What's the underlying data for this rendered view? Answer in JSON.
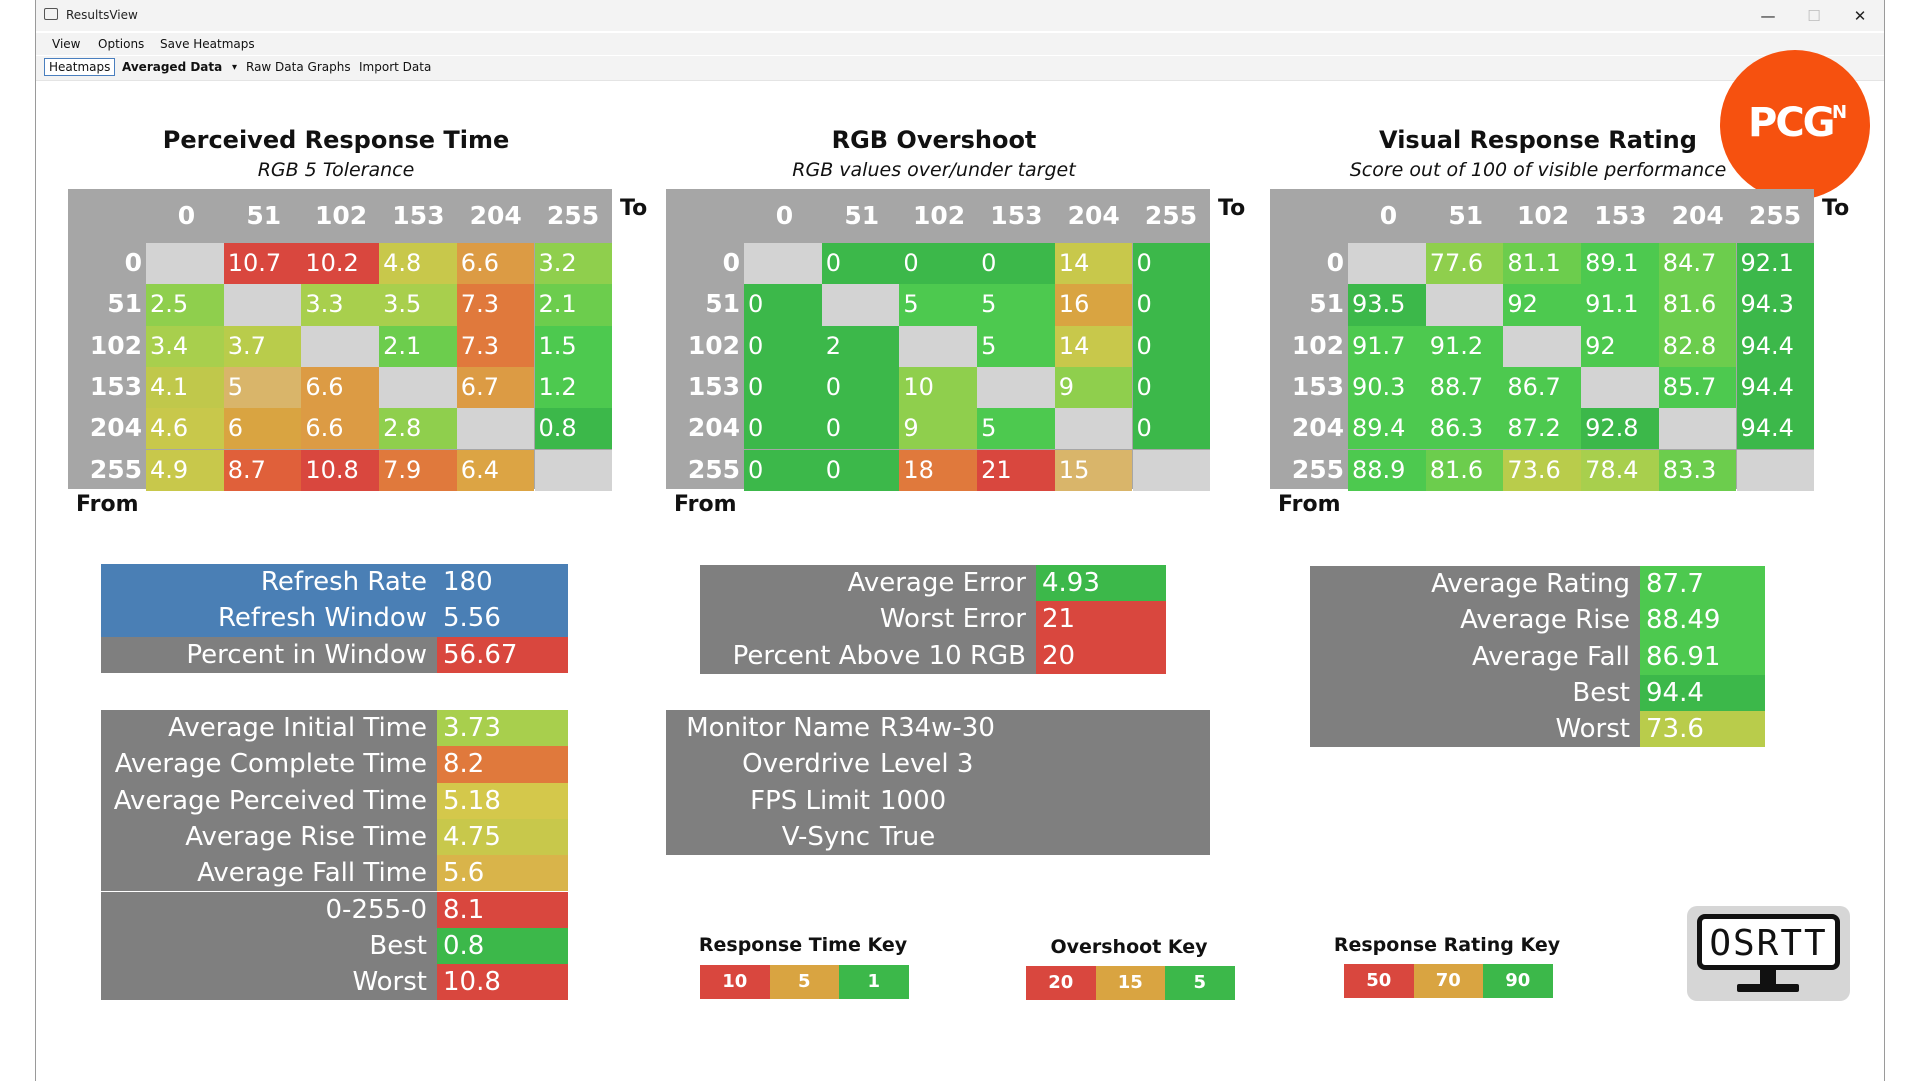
{
  "window": {
    "title": "ResultsView",
    "controls": {
      "minimize": "—",
      "maximize": "☐",
      "close": "✕"
    }
  },
  "menu": [
    "View",
    "Options",
    "Save Heatmaps"
  ],
  "toolbar": {
    "tabs": [
      "Heatmaps"
    ],
    "dropdown_value": "Averaged Data",
    "dropdown_arrow": "▾",
    "links": [
      "Raw Data Graphs",
      "Import Data"
    ]
  },
  "logo_text": "PCG",
  "logo_sup": "N",
  "colors": {
    "header_gray": "#a6a6a6",
    "diag_gray": "#d3d3d3",
    "stat_gray": "#7f7f7f",
    "blue": "#4a7fb5",
    "red": "#d9473e",
    "orange_red": "#e05a3a",
    "orange": "#e0793c",
    "amber": "#d9a441",
    "yellow": "#d4b84d",
    "yellow_green": "#b9cc4b",
    "light_green": "#8fcf4d",
    "green": "#4dc94f",
    "dark_green": "#3cb84a"
  },
  "heatmaps": [
    {
      "id": "perceived",
      "title": "Perceived Response Time",
      "subtitle": "RGB 5 Tolerance",
      "to_label": "To",
      "from_label": "From",
      "columns": [
        "0",
        "51",
        "102",
        "153",
        "204",
        "255"
      ],
      "rows": [
        "0",
        "51",
        "102",
        "153",
        "204",
        "255"
      ],
      "values": [
        [
          "",
          "10.7",
          "10.2",
          "4.8",
          "6.6",
          "3.2"
        ],
        [
          "2.5",
          "",
          "3.3",
          "3.5",
          "7.3",
          "2.1"
        ],
        [
          "3.4",
          "3.7",
          "",
          "2.1",
          "7.3",
          "1.5"
        ],
        [
          "4.1",
          "5",
          "6.6",
          "",
          "6.7",
          "1.2"
        ],
        [
          "4.6",
          "6",
          "6.6",
          "2.8",
          "",
          "0.8"
        ],
        [
          "4.9",
          "8.7",
          "10.8",
          "7.9",
          "6.4",
          ""
        ]
      ],
      "cell_colors": [
        [
          "diag",
          "#d9473e",
          "#d9473e",
          "#c8c84b",
          "#dc9b44",
          "#8fcf4d"
        ],
        [
          "#8fcf4d",
          "diag",
          "#a8cf4d",
          "#a8cf4d",
          "#e0793c",
          "#6ccd4d"
        ],
        [
          "#a8cf4d",
          "#b9cc4b",
          "diag",
          "#6ccd4d",
          "#e0793c",
          "#4dc94f"
        ],
        [
          "#c0c84b",
          "#d9b56a",
          "#dc9b44",
          "diag",
          "#dc9b44",
          "#4dc94f"
        ],
        [
          "#c8c84b",
          "#d9a441",
          "#dc9b44",
          "#8fcf4d",
          "diag",
          "#3cb84a"
        ],
        [
          "#c8c84b",
          "#e0603a",
          "#d9473e",
          "#e0793c",
          "#dca444",
          "diag"
        ]
      ]
    },
    {
      "id": "overshoot",
      "title": "RGB Overshoot",
      "subtitle": "RGB values over/under target",
      "to_label": "To",
      "from_label": "From",
      "columns": [
        "0",
        "51",
        "102",
        "153",
        "204",
        "255"
      ],
      "rows": [
        "0",
        "51",
        "102",
        "153",
        "204",
        "255"
      ],
      "values": [
        [
          "",
          "0",
          "0",
          "0",
          "14",
          "0"
        ],
        [
          "0",
          "",
          "5",
          "5",
          "16",
          "0"
        ],
        [
          "0",
          "2",
          "",
          "5",
          "14",
          "0"
        ],
        [
          "0",
          "0",
          "10",
          "",
          "9",
          "0"
        ],
        [
          "0",
          "0",
          "9",
          "5",
          "",
          "0"
        ],
        [
          "0",
          "0",
          "18",
          "21",
          "15",
          ""
        ]
      ],
      "cell_colors": [
        [
          "diag",
          "#3cb84a",
          "#3cb84a",
          "#3cb84a",
          "#c8c84b",
          "#3cb84a"
        ],
        [
          "#3cb84a",
          "diag",
          "#4dc94f",
          "#4dc94f",
          "#d9a441",
          "#3cb84a"
        ],
        [
          "#3cb84a",
          "#3cb84a",
          "diag",
          "#4dc94f",
          "#c8c84b",
          "#3cb84a"
        ],
        [
          "#3cb84a",
          "#3cb84a",
          "#8fcf4d",
          "diag",
          "#8fcf4d",
          "#3cb84a"
        ],
        [
          "#3cb84a",
          "#3cb84a",
          "#8fcf4d",
          "#4dc94f",
          "diag",
          "#3cb84a"
        ],
        [
          "#3cb84a",
          "#3cb84a",
          "#e0793c",
          "#d9473e",
          "#d9b56a",
          "diag"
        ]
      ]
    },
    {
      "id": "rating",
      "title": "Visual Response Rating",
      "subtitle": "Score out of 100 of visible performance",
      "to_label": "To",
      "from_label": "From",
      "columns": [
        "0",
        "51",
        "102",
        "153",
        "204",
        "255"
      ],
      "rows": [
        "0",
        "51",
        "102",
        "153",
        "204",
        "255"
      ],
      "values": [
        [
          "",
          "77.6",
          "81.1",
          "89.1",
          "84.7",
          "92.1"
        ],
        [
          "93.5",
          "",
          "92",
          "91.1",
          "81.6",
          "94.3"
        ],
        [
          "91.7",
          "91.2",
          "",
          "92",
          "82.8",
          "94.4"
        ],
        [
          "90.3",
          "88.7",
          "86.7",
          "",
          "85.7",
          "94.4"
        ],
        [
          "89.4",
          "86.3",
          "87.2",
          "92.8",
          "",
          "94.4"
        ],
        [
          "88.9",
          "81.6",
          "73.6",
          "78.4",
          "83.3",
          ""
        ]
      ],
      "cell_colors": [
        [
          "diag",
          "#8fcf4d",
          "#6ccd4d",
          "#4dc94f",
          "#6ccd4d",
          "#3cb84a"
        ],
        [
          "#3cb84a",
          "diag",
          "#4dc94f",
          "#4dc94f",
          "#6ccd4d",
          "#3cb84a"
        ],
        [
          "#4dc94f",
          "#4dc94f",
          "diag",
          "#4dc94f",
          "#6ccd4d",
          "#3cb84a"
        ],
        [
          "#4dc94f",
          "#4dc94f",
          "#4dc94f",
          "diag",
          "#4dc94f",
          "#3cb84a"
        ],
        [
          "#4dc94f",
          "#4dc94f",
          "#4dc94f",
          "#3cb84a",
          "diag",
          "#3cb84a"
        ],
        [
          "#4dc94f",
          "#6ccd4d",
          "#b9cc4b",
          "#a8cf4d",
          "#6ccd4d",
          "diag"
        ]
      ]
    }
  ],
  "refresh_stats": [
    {
      "label": "Refresh Rate",
      "value": "180",
      "label_color": "#4a7fb5",
      "value_color": "#4a7fb5"
    },
    {
      "label": "Refresh Window",
      "value": "5.56",
      "label_color": "#4a7fb5",
      "value_color": "#4a7fb5"
    },
    {
      "label": "Percent in Window",
      "value": "56.67",
      "label_color": "#7f7f7f",
      "value_color": "#d9473e"
    }
  ],
  "time_stats": [
    {
      "label": "Average Initial Time",
      "value": "3.73",
      "value_color": "#a8cf4d"
    },
    {
      "label": "Average Complete Time",
      "value": "8.2",
      "value_color": "#e0793c"
    },
    {
      "label": "Average Perceived Time",
      "value": "5.18",
      "value_color": "#d4c84b"
    },
    {
      "label": "Average Rise Time",
      "value": "4.75",
      "value_color": "#c8c84b"
    },
    {
      "label": "Average Fall Time",
      "value": "5.6",
      "value_color": "#d9b44a"
    },
    {
      "label": "0-255-0",
      "value": "8.1",
      "value_color": "#d9473e"
    },
    {
      "label": "Best",
      "value": "0.8",
      "value_color": "#3cb84a"
    },
    {
      "label": "Worst",
      "value": "10.8",
      "value_color": "#d9473e"
    }
  ],
  "error_stats": [
    {
      "label": "Average Error",
      "value": "4.93",
      "value_color": "#3cb84a"
    },
    {
      "label": "Worst Error",
      "value": "21",
      "value_color": "#d9473e"
    },
    {
      "label": "Percent Above 10 RGB",
      "value": "20",
      "value_color": "#d9473e"
    }
  ],
  "monitor_info": [
    {
      "label": "Monitor Name",
      "value": "R34w-30"
    },
    {
      "label": "Overdrive",
      "value": "Level 3"
    },
    {
      "label": "FPS Limit",
      "value": "1000"
    },
    {
      "label": "V-Sync",
      "value": "True"
    }
  ],
  "rating_stats": [
    {
      "label": "Average Rating",
      "value": "87.7",
      "value_color": "#4dc94f"
    },
    {
      "label": "Average Rise",
      "value": "88.49",
      "value_color": "#4dc94f"
    },
    {
      "label": "Average Fall",
      "value": "86.91",
      "value_color": "#4dc94f"
    },
    {
      "label": "Best",
      "value": "94.4",
      "value_color": "#3cb84a"
    },
    {
      "label": "Worst",
      "value": "73.6",
      "value_color": "#b9cc4b"
    }
  ],
  "keys": [
    {
      "title": "Response Time Key",
      "items": [
        {
          "v": "10",
          "c": "#d9473e"
        },
        {
          "v": "5",
          "c": "#d9a441"
        },
        {
          "v": "1",
          "c": "#3cb84a"
        }
      ]
    },
    {
      "title": "Overshoot Key",
      "items": [
        {
          "v": "20",
          "c": "#d9473e"
        },
        {
          "v": "15",
          "c": "#d9a441"
        },
        {
          "v": "5",
          "c": "#3cb84a"
        }
      ]
    },
    {
      "title": "Response Rating Key",
      "items": [
        {
          "v": "50",
          "c": "#d9473e"
        },
        {
          "v": "70",
          "c": "#d9a441"
        },
        {
          "v": "90",
          "c": "#3cb84a"
        }
      ]
    }
  ],
  "osrtt_logo": "OSRTT"
}
